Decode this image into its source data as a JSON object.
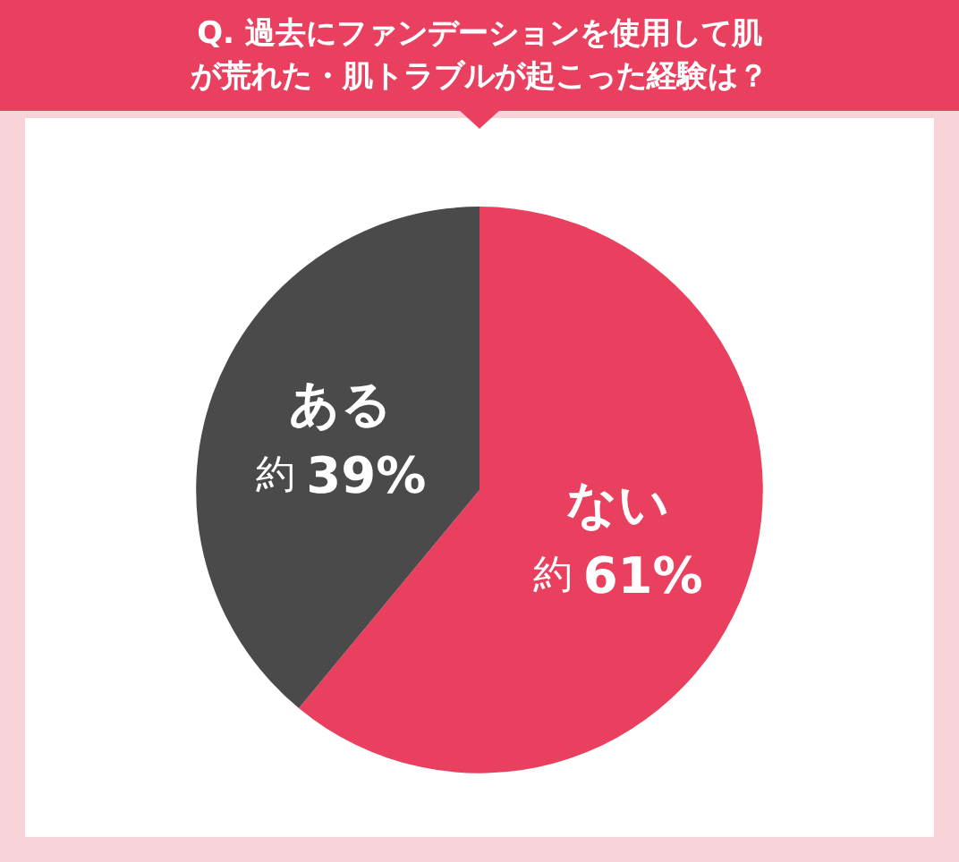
{
  "chart_data": {
    "type": "pie",
    "title": "Q. 過去にファンデーションを使用して肌が荒れた・肌トラブルが起こった経験は？",
    "categories": [
      "ない",
      "ある"
    ],
    "values": [
      61,
      39
    ],
    "colors": [
      "#e8405e",
      "#4a4a4a"
    ],
    "value_labels": [
      "約61%",
      "約39%"
    ],
    "legend": false
  }
}
